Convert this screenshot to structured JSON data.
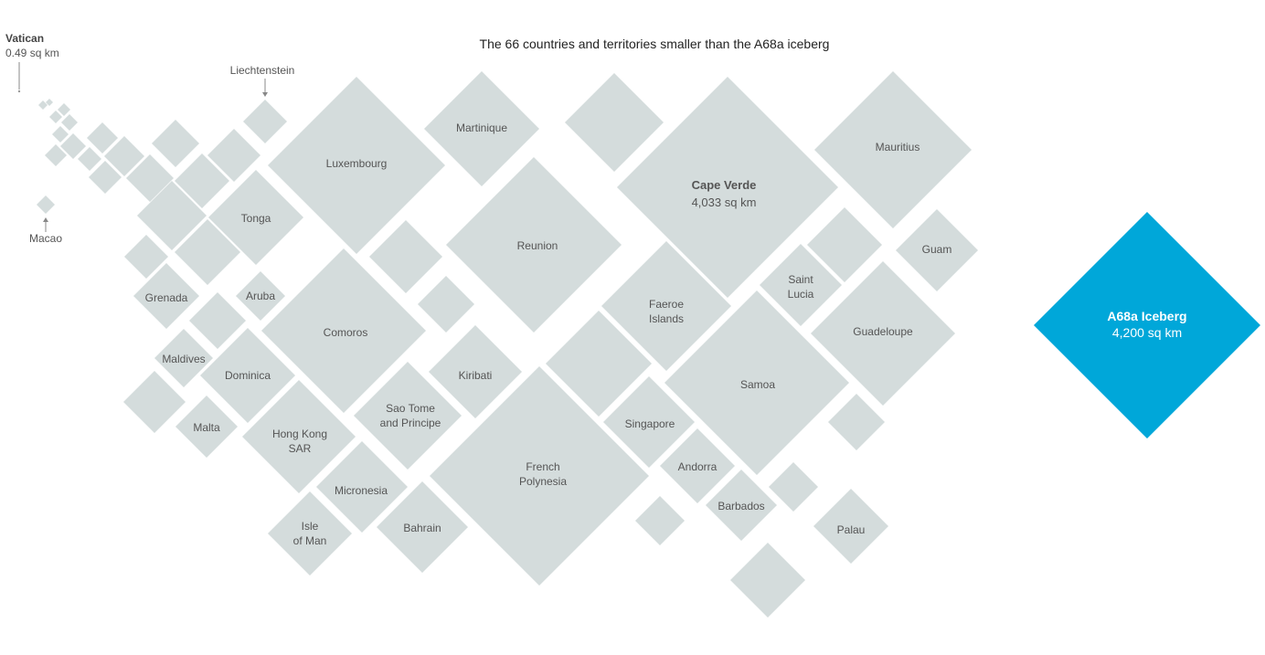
{
  "chart_data": {
    "type": "diamond-area",
    "title": "The 66 countries and territories smaller than the A68a iceberg",
    "fill": "#d4dcdc",
    "highlight_fill": "#00a7d9",
    "annotations": {
      "vatican": {
        "name": "Vatican",
        "value": "0.49 sq km"
      },
      "liechtenstein": {
        "name": "Liechtenstein"
      },
      "macao": {
        "name": "Macao"
      }
    },
    "labeled": [
      {
        "name": "Cape Verde",
        "value_label": "4,033 sq km",
        "value": 4033
      },
      {
        "name": "A68a Iceberg",
        "value_label": "4,200 sq km",
        "value": 4200
      },
      {
        "name": "Mauritius"
      },
      {
        "name": "Samoa"
      },
      {
        "name": "Luxembourg"
      },
      {
        "name": "Reunion"
      },
      {
        "name": "French Polynesia"
      },
      {
        "name": "Comoros"
      },
      {
        "name": "Guadeloupe"
      },
      {
        "name": "Faeroe Islands"
      },
      {
        "name": "Martinique"
      },
      {
        "name": "Sao Tome and Principe"
      },
      {
        "name": "Hong Kong SAR"
      },
      {
        "name": "Dominica"
      },
      {
        "name": "Kiribati"
      },
      {
        "name": "Bahrain"
      },
      {
        "name": "Micronesia"
      },
      {
        "name": "Singapore"
      },
      {
        "name": "Tonga"
      },
      {
        "name": "Isle of Man"
      },
      {
        "name": "Guam"
      },
      {
        "name": "Saint Lucia"
      },
      {
        "name": "Barbados"
      },
      {
        "name": "Andorra"
      },
      {
        "name": "Palau"
      },
      {
        "name": "Grenada"
      },
      {
        "name": "Malta"
      },
      {
        "name": "Maldives"
      },
      {
        "name": "Aruba"
      }
    ],
    "text": {
      "vatican": "Vatican",
      "vatican_val": "0.49 sq km",
      "liechtenstein": "Liechtenstein",
      "macao": "Macao",
      "luxembourg": "Luxembourg",
      "martinique": "Martinique",
      "cape_verde": "Cape Verde",
      "cape_verde_val": "4,033 sq km",
      "mauritius": "Mauritius",
      "tonga": "Tonga",
      "reunion": "Reunion",
      "guam": "Guam",
      "saint": "Saint",
      "lucia": "Lucia",
      "faeroe": "Faeroe",
      "islands": "Islands",
      "grenada": "Grenada",
      "aruba": "Aruba",
      "comoros": "Comoros",
      "guadeloupe": "Guadeloupe",
      "maldives": "Maldives",
      "dominica": "Dominica",
      "kiribati": "Kiribati",
      "samoa": "Samoa",
      "sao_tome": "Sao Tome",
      "and_principe": "and Principe",
      "malta": "Malta",
      "hong_kong": "Hong Kong",
      "sar": "SAR",
      "singapore": "Singapore",
      "french": "French",
      "polynesia": "Polynesia",
      "andorra": "Andorra",
      "micronesia": "Micronesia",
      "barbados": "Barbados",
      "isle": "Isle",
      "of_man": "of Man",
      "bahrain": "Bahrain",
      "palau": "Palau",
      "iceberg": "A68a Iceberg",
      "iceberg_val": "4,200 sq km"
    }
  }
}
